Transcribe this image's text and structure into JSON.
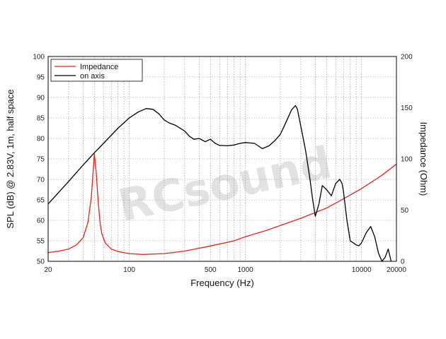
{
  "watermark": "RCsound",
  "chart_data": {
    "type": "line",
    "xlabel": "Frequency (Hz)",
    "ylabel_left": "SPL (dB) @ 2.83V, 1m, half space",
    "ylabel_right": "Impedance (Ohm)",
    "x_scale": "log",
    "xlim": [
      20,
      20000
    ],
    "ylim_left": [
      50,
      100
    ],
    "ylim_right": [
      0,
      200
    ],
    "grid": true,
    "legend_position": "top-left",
    "x_tick_labels": [
      "20",
      "100",
      "500",
      "1000",
      "10000",
      "20000"
    ],
    "y_left_ticks": [
      "50",
      "55",
      "60",
      "65",
      "70",
      "75",
      "80",
      "85",
      "90",
      "95",
      "100"
    ],
    "y_right_ticks": [
      "0",
      "50",
      "100",
      "150",
      "200"
    ],
    "series": [
      {
        "name": "Impedance",
        "color": "#e0261e",
        "axis": "right",
        "x": [
          20,
          25,
          30,
          35,
          40,
          44,
          47,
          49,
          50,
          52,
          54,
          56,
          58,
          62,
          70,
          80,
          100,
          130,
          200,
          300,
          500,
          800,
          1000,
          1500,
          2000,
          3000,
          5000,
          7000,
          10000,
          15000,
          20000
        ],
        "y": [
          8.5,
          10,
          12,
          16,
          23,
          38,
          62,
          90,
          105,
          85,
          58,
          38,
          27,
          18,
          12,
          9.5,
          7.5,
          6.7,
          7.5,
          10,
          15,
          20,
          24,
          30,
          35,
          42,
          52,
          61,
          71,
          84,
          95
        ]
      },
      {
        "name": "on axis",
        "color": "#000000",
        "axis": "left",
        "x": [
          20,
          30,
          40,
          50,
          60,
          80,
          100,
          120,
          140,
          160,
          180,
          200,
          220,
          250,
          300,
          330,
          360,
          400,
          450,
          500,
          550,
          600,
          700,
          800,
          900,
          1000,
          1200,
          1400,
          1600,
          1800,
          2000,
          2200,
          2500,
          2700,
          2800,
          3000,
          3300,
          3600,
          3800,
          4000,
          4300,
          4600,
          5000,
          5500,
          6000,
          6500,
          6800,
          7000,
          7500,
          8000,
          8500,
          9000,
          9500,
          10000,
          11000,
          12000,
          13000,
          14000,
          15000,
          16000,
          17000,
          18000
        ],
        "y": [
          64,
          69.5,
          73.5,
          76.5,
          78.8,
          82.5,
          85,
          86.5,
          87.3,
          87.1,
          86,
          84.5,
          83.8,
          83.2,
          81.8,
          80.5,
          79.8,
          80,
          79.2,
          79.8,
          78.8,
          78.3,
          78.2,
          78.4,
          78.8,
          79,
          78.8,
          77.5,
          78.2,
          79.5,
          81,
          83.5,
          87,
          88,
          87.2,
          83,
          77,
          70,
          65,
          61,
          64,
          68.5,
          67.5,
          66,
          69,
          70,
          69,
          67,
          60,
          55,
          54.5,
          54,
          53.8,
          54.5,
          57,
          58.5,
          56,
          52,
          50,
          51,
          53,
          50
        ]
      }
    ]
  }
}
